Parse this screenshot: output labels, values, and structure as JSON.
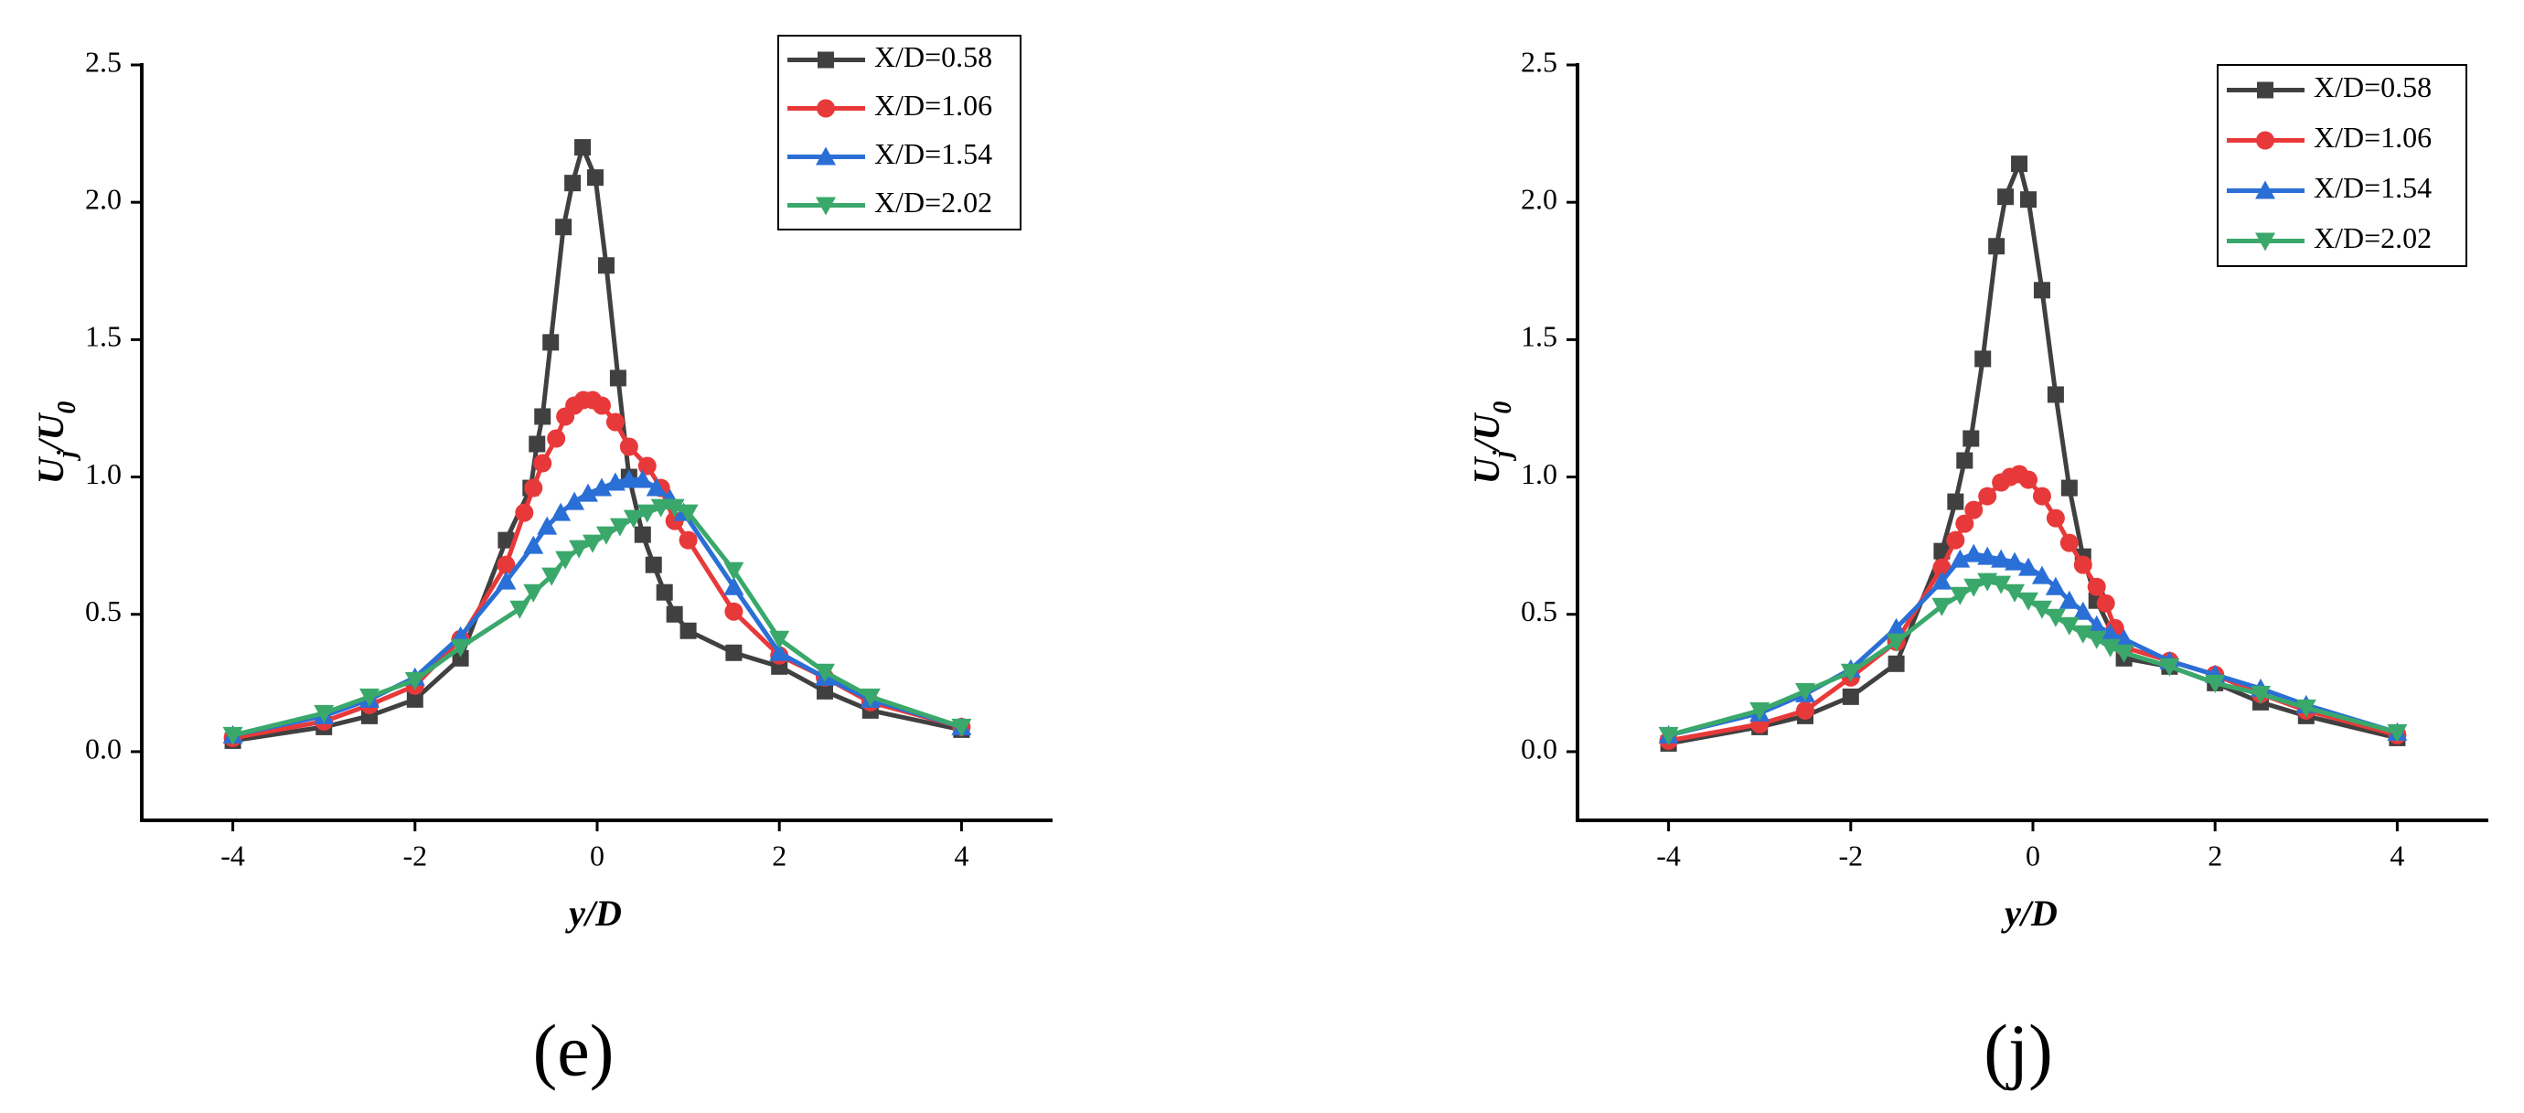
{
  "chart_data": [
    {
      "type": "line",
      "xlabel": "y/D",
      "ylabel": [
        {
          "text": "U"
        },
        {
          "text": "j",
          "sub": true
        },
        {
          "text": "/U"
        },
        {
          "text": "0",
          "sub": true
        }
      ],
      "panel_label": "(e)",
      "xlim": [
        -5,
        5
      ],
      "ylim": [
        -0.25,
        2.5
      ],
      "xticks": [
        -4,
        -2,
        0,
        2,
        4
      ],
      "yticks": [
        {
          "value": 0,
          "label": "0.0"
        },
        {
          "value": 0.5,
          "label": "0.5"
        },
        {
          "value": 1,
          "label": "1.0"
        },
        {
          "value": 1.5,
          "label": "1.5"
        },
        {
          "value": 2,
          "label": "2.0"
        },
        {
          "value": 2.5,
          "label": "2.5"
        }
      ],
      "legend": "upper right",
      "series": [
        {
          "name": "X/D=0.58",
          "color": "#404040",
          "marker": "square",
          "x": [
            -4,
            -3,
            -2.5,
            -2,
            -1.5,
            -1,
            -0.73,
            -0.66,
            -0.6,
            -0.51,
            -0.37,
            -0.27,
            -0.16,
            -0.02,
            0.1,
            0.23,
            0.35,
            0.5,
            0.62,
            0.74,
            0.85,
            1,
            1.5,
            2,
            2.5,
            3,
            4
          ],
          "values": [
            0.04,
            0.09,
            0.13,
            0.19,
            0.34,
            0.77,
            0.96,
            1.12,
            1.22,
            1.49,
            1.91,
            2.07,
            2.2,
            2.09,
            1.77,
            1.36,
            1.0,
            0.79,
            0.68,
            0.58,
            0.5,
            0.44,
            0.36,
            0.31,
            0.22,
            0.15,
            0.08
          ]
        },
        {
          "name": "X/D=1.06",
          "color": "#e8393a",
          "marker": "circle",
          "x": [
            -4,
            -3,
            -2.5,
            -2,
            -1.5,
            -1,
            -0.8,
            -0.7,
            -0.6,
            -0.45,
            -0.35,
            -0.25,
            -0.15,
            -0.05,
            0.05,
            0.2,
            0.35,
            0.55,
            0.7,
            0.85,
            1,
            1.5,
            2,
            2.5,
            3,
            4
          ],
          "values": [
            0.05,
            0.11,
            0.17,
            0.24,
            0.41,
            0.68,
            0.87,
            0.96,
            1.05,
            1.14,
            1.22,
            1.26,
            1.28,
            1.28,
            1.26,
            1.2,
            1.11,
            1.04,
            0.96,
            0.84,
            0.77,
            0.51,
            0.35,
            0.27,
            0.18,
            0.09
          ]
        },
        {
          "name": "X/D=1.54",
          "color": "#2a6fd6",
          "marker": "triangle-up",
          "x": [
            -4,
            -3,
            -2.5,
            -2,
            -1.5,
            -1,
            -0.7,
            -0.55,
            -0.4,
            -0.25,
            -0.1,
            0.05,
            0.2,
            0.35,
            0.5,
            0.65,
            0.8,
            0.95,
            1.5,
            2,
            2.5,
            3,
            4
          ],
          "values": [
            0.06,
            0.13,
            0.19,
            0.27,
            0.42,
            0.62,
            0.75,
            0.82,
            0.87,
            0.91,
            0.94,
            0.96,
            0.98,
            0.99,
            0.99,
            0.96,
            0.92,
            0.87,
            0.6,
            0.36,
            0.27,
            0.19,
            0.09
          ]
        },
        {
          "name": "X/D=2.02",
          "color": "#3aa86b",
          "marker": "triangle-down",
          "x": [
            -4,
            -3,
            -2.5,
            -2,
            -1.5,
            -0.85,
            -0.7,
            -0.5,
            -0.35,
            -0.2,
            -0.05,
            0.1,
            0.25,
            0.4,
            0.55,
            0.7,
            0.85,
            1,
            1.5,
            2,
            2.5,
            3,
            4
          ],
          "values": [
            0.06,
            0.14,
            0.2,
            0.26,
            0.38,
            0.52,
            0.58,
            0.64,
            0.7,
            0.74,
            0.76,
            0.79,
            0.82,
            0.85,
            0.87,
            0.89,
            0.89,
            0.87,
            0.66,
            0.41,
            0.29,
            0.2,
            0.09
          ]
        }
      ]
    },
    {
      "type": "line",
      "xlabel": "y/D",
      "ylabel": [
        {
          "text": "U"
        },
        {
          "text": "j",
          "sub": true
        },
        {
          "text": "/U"
        },
        {
          "text": "0",
          "sub": true
        }
      ],
      "panel_label": "(j)",
      "xlim": [
        -5,
        5
      ],
      "ylim": [
        -0.25,
        2.5
      ],
      "xticks": [
        -4,
        -2,
        0,
        2,
        4
      ],
      "yticks": [
        {
          "value": 0,
          "label": "0.0"
        },
        {
          "value": 0.5,
          "label": "0.5"
        },
        {
          "value": 1,
          "label": "1.0"
        },
        {
          "value": 1.5,
          "label": "1.5"
        },
        {
          "value": 2,
          "label": "2.0"
        },
        {
          "value": 2.5,
          "label": "2.5"
        }
      ],
      "legend": "upper right",
      "series": [
        {
          "name": "X/D=0.58",
          "color": "#404040",
          "marker": "square",
          "x": [
            -4,
            -3,
            -2.5,
            -2,
            -1.5,
            -1,
            -0.85,
            -0.75,
            -0.68,
            -0.55,
            -0.4,
            -0.3,
            -0.15,
            -0.05,
            0.1,
            0.25,
            0.4,
            0.55,
            0.7,
            1,
            1.5,
            2,
            2.5,
            3,
            4
          ],
          "values": [
            0.03,
            0.09,
            0.13,
            0.2,
            0.32,
            0.73,
            0.91,
            1.06,
            1.14,
            1.43,
            1.84,
            2.02,
            2.14,
            2.01,
            1.68,
            1.3,
            0.96,
            0.71,
            0.55,
            0.34,
            0.31,
            0.25,
            0.18,
            0.13,
            0.05
          ]
        },
        {
          "name": "X/D=1.06",
          "color": "#e8393a",
          "marker": "circle",
          "x": [
            -4,
            -3,
            -2.5,
            -2,
            -1.5,
            -1,
            -0.85,
            -0.75,
            -0.65,
            -0.5,
            -0.35,
            -0.25,
            -0.15,
            -0.05,
            0.1,
            0.25,
            0.4,
            0.55,
            0.7,
            0.8,
            0.9,
            1,
            1.5,
            2,
            2.5,
            3,
            4
          ],
          "values": [
            0.04,
            0.1,
            0.15,
            0.27,
            0.4,
            0.67,
            0.77,
            0.83,
            0.88,
            0.93,
            0.98,
            1.0,
            1.01,
            0.99,
            0.93,
            0.85,
            0.76,
            0.68,
            0.6,
            0.54,
            0.45,
            0.38,
            0.33,
            0.28,
            0.21,
            0.15,
            0.06
          ]
        },
        {
          "name": "X/D=1.54",
          "color": "#2a6fd6",
          "marker": "triangle-up",
          "x": [
            -4,
            -3,
            -2.5,
            -2,
            -1.5,
            -1,
            -0.8,
            -0.65,
            -0.5,
            -0.35,
            -0.2,
            -0.05,
            0.1,
            0.25,
            0.4,
            0.55,
            0.7,
            0.85,
            1,
            1.5,
            2,
            2.5,
            3,
            4
          ],
          "values": [
            0.06,
            0.14,
            0.21,
            0.3,
            0.45,
            0.62,
            0.7,
            0.72,
            0.71,
            0.7,
            0.69,
            0.67,
            0.64,
            0.6,
            0.55,
            0.51,
            0.46,
            0.43,
            0.41,
            0.33,
            0.28,
            0.23,
            0.17,
            0.07
          ]
        },
        {
          "name": "X/D=2.02",
          "color": "#3aa86b",
          "marker": "triangle-down",
          "x": [
            -4,
            -3,
            -2.5,
            -2,
            -1.5,
            -1,
            -0.8,
            -0.65,
            -0.5,
            -0.35,
            -0.2,
            -0.05,
            0.1,
            0.25,
            0.4,
            0.55,
            0.7,
            0.85,
            1,
            1.5,
            2,
            2.5,
            3,
            4
          ],
          "values": [
            0.06,
            0.15,
            0.22,
            0.29,
            0.4,
            0.53,
            0.57,
            0.6,
            0.62,
            0.61,
            0.58,
            0.55,
            0.52,
            0.49,
            0.46,
            0.43,
            0.41,
            0.38,
            0.36,
            0.31,
            0.25,
            0.21,
            0.16,
            0.07
          ]
        }
      ]
    }
  ]
}
